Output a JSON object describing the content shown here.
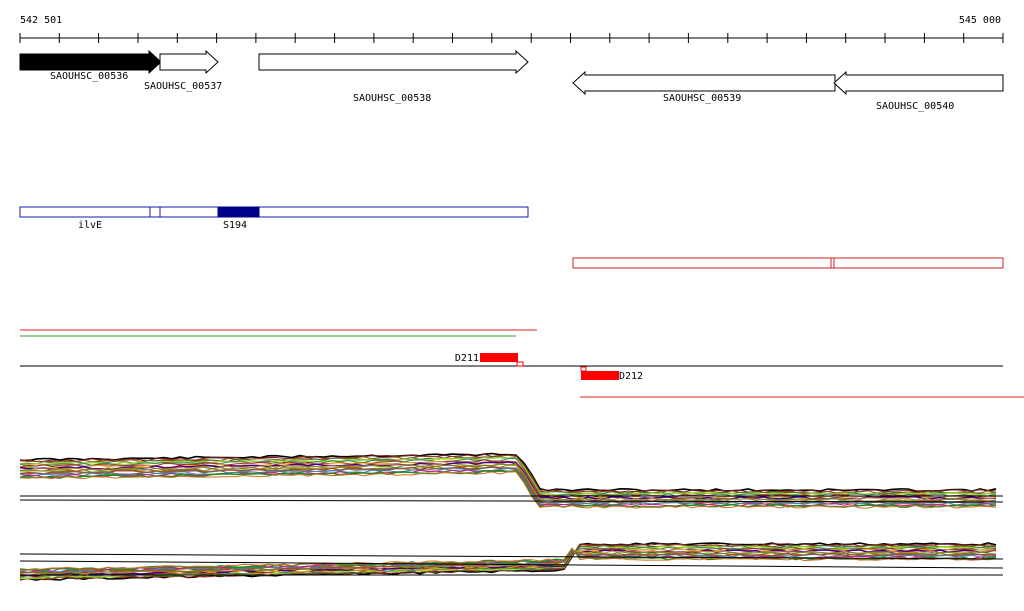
{
  "ruler": {
    "start_label": "542 501",
    "end_label": "545 000",
    "start": 542501,
    "end": 545000
  },
  "genes": [
    {
      "id": "SAOUHSC_00536",
      "label": "SAOUHSC_00536",
      "strand": "+",
      "highlighted": true
    },
    {
      "id": "SAOUHSC_00537",
      "label": "SAOUHSC_00537",
      "strand": "+",
      "highlighted": false
    },
    {
      "id": "SAOUHSC_00538",
      "label": "SAOUHSC_00538",
      "strand": "+",
      "highlighted": false
    },
    {
      "id": "SAOUHSC_00539",
      "label": "SAOUHSC_00539",
      "strand": "-",
      "highlighted": false
    },
    {
      "id": "SAOUHSC_00540",
      "label": "SAOUHSC_00540",
      "strand": "-",
      "highlighted": false
    }
  ],
  "plus_transcripts": {
    "color": "#1a1aa6",
    "labels": {
      "ilvE": "ilvE",
      "S194": "S194"
    },
    "highlight_color": "#00008b"
  },
  "minus_transcripts": {
    "color": "#cc2222"
  },
  "lines": {
    "red": "#dd2222",
    "green": "#22aa22",
    "black": "#000000"
  },
  "peaks": {
    "D211": {
      "label": "D211",
      "color": "#ff0000"
    },
    "D212": {
      "label": "D212",
      "color": "#ff0000"
    }
  },
  "expression_colors": [
    "#000000",
    "#7a1f1f",
    "#8b4513",
    "#556b2f",
    "#9acd32",
    "#2e8b57",
    "#b22222",
    "#daa520",
    "#4b0082",
    "#cd853f",
    "#6b8e23",
    "#808000",
    "#a0522d",
    "#696969",
    "#4682b4",
    "#c71585",
    "#228b22",
    "#d2691e"
  ]
}
